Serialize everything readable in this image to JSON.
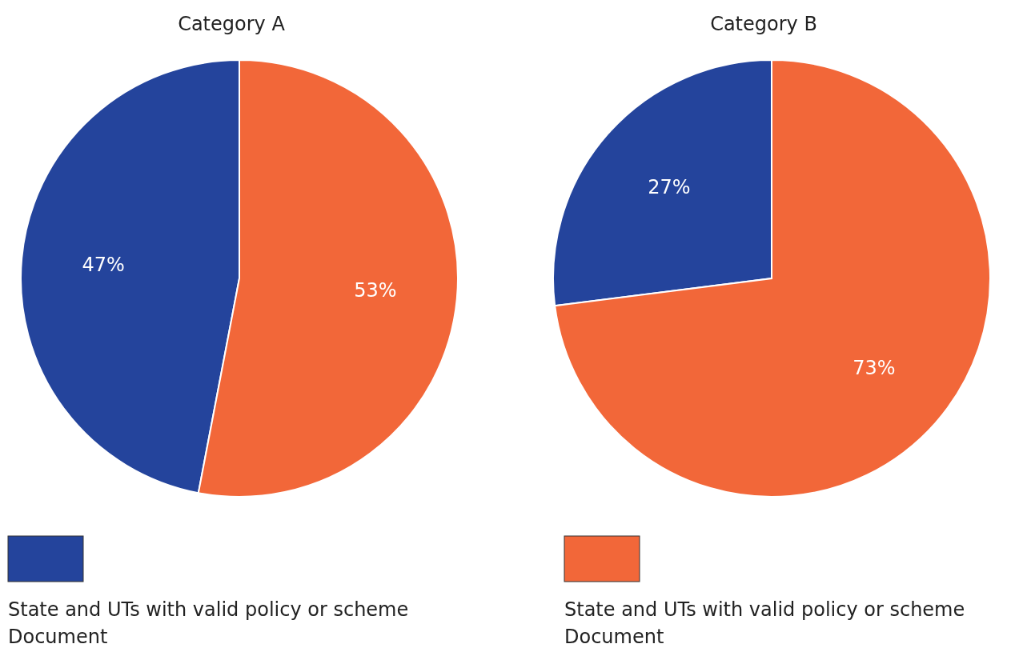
{
  "chart_data": [
    {
      "type": "pie",
      "title": "Category A",
      "categories": [
        "State and UTs with valid policy or scheme Document",
        "State and UTs with valid policy or scheme Document"
      ],
      "values": [
        47,
        53
      ],
      "colors": [
        "#24449c",
        "#f26739"
      ],
      "value_labels": [
        "47%",
        "53%"
      ],
      "legend": "bottom"
    },
    {
      "type": "pie",
      "title": "Category B",
      "categories": [
        null,
        null
      ],
      "values": [
        27,
        73
      ],
      "colors": [
        "#24449c",
        "#f26739"
      ],
      "value_labels": [
        "27%",
        "73%"
      ]
    }
  ]
}
